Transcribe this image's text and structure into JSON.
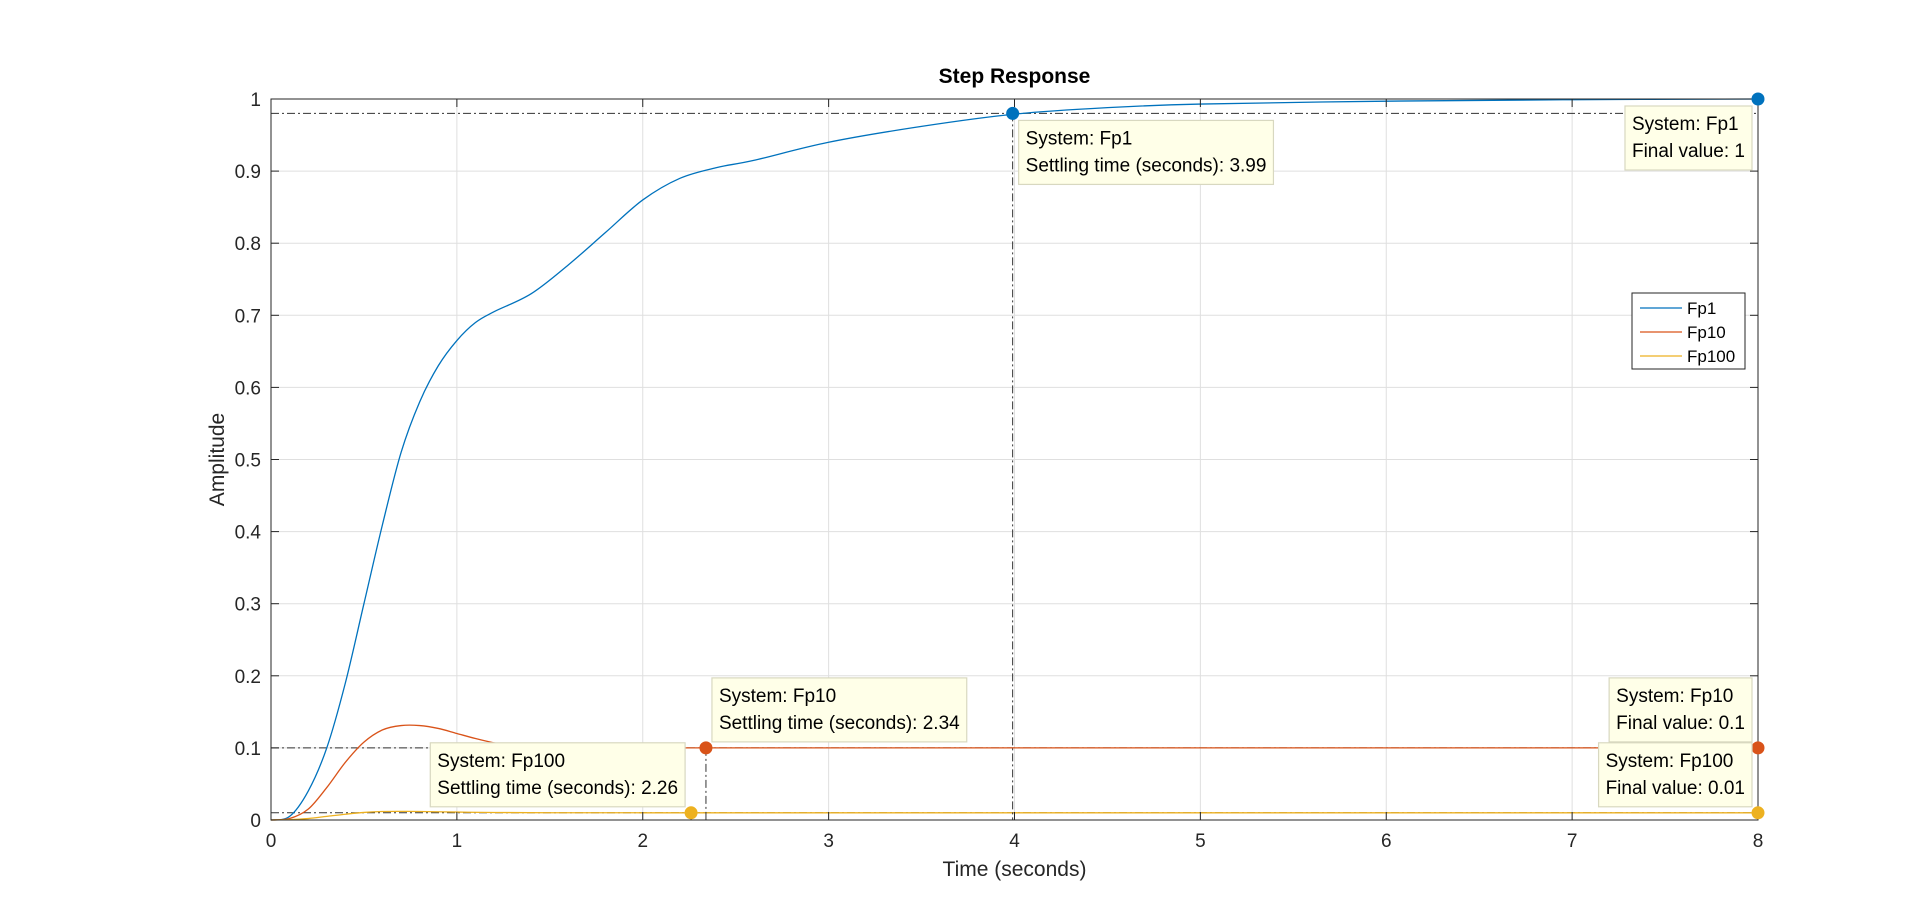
{
  "colors": {
    "fp1": "#0072bd",
    "fp10": "#d95319",
    "fp100": "#edb120",
    "marker_fp1": "#0072bd",
    "marker_fp10": "#d95319",
    "marker_fp100": "#edb120"
  },
  "chart_data": {
    "type": "line",
    "title": "Step Response",
    "xlabel": "Time (seconds)",
    "ylabel": "Amplitude",
    "xlim": [
      0,
      8
    ],
    "ylim": [
      0,
      1
    ],
    "x_ticks": [
      "0",
      "1",
      "2",
      "3",
      "4",
      "5",
      "6",
      "7",
      "8"
    ],
    "y_ticks": [
      "0",
      "0.1",
      "0.2",
      "0.3",
      "0.4",
      "0.5",
      "0.6",
      "0.7",
      "0.8",
      "0.9",
      "1"
    ],
    "grid": true,
    "legend_position": "right",
    "series": [
      {
        "name": "Fp1",
        "color_key": "fp1",
        "x": [
          0,
          0.1,
          0.2,
          0.3,
          0.4,
          0.5,
          0.6,
          0.7,
          0.8,
          0.9,
          1.0,
          1.1,
          1.2,
          1.4,
          1.6,
          1.8,
          2.0,
          2.2,
          2.4,
          2.6,
          3.0,
          3.5,
          4.0,
          4.5,
          5.0,
          6.0,
          7.0,
          8.0
        ],
        "y": [
          0,
          0.005,
          0.04,
          0.1,
          0.19,
          0.3,
          0.41,
          0.51,
          0.58,
          0.63,
          0.665,
          0.69,
          0.705,
          0.73,
          0.77,
          0.815,
          0.86,
          0.89,
          0.905,
          0.915,
          0.94,
          0.962,
          0.979,
          0.988,
          0.993,
          0.997,
          0.999,
          1.0
        ]
      },
      {
        "name": "Fp10",
        "color_key": "fp10",
        "x": [
          0,
          0.1,
          0.2,
          0.3,
          0.4,
          0.5,
          0.6,
          0.7,
          0.8,
          0.9,
          1.0,
          1.1,
          1.2,
          1.3,
          1.4,
          1.6,
          1.8,
          2.0,
          2.34,
          3.0,
          4.0,
          5.0,
          6.0,
          7.0,
          8.0
        ],
        "y": [
          0,
          0.002,
          0.015,
          0.045,
          0.08,
          0.108,
          0.125,
          0.131,
          0.131,
          0.127,
          0.12,
          0.113,
          0.107,
          0.103,
          0.1,
          0.098,
          0.099,
          0.1,
          0.1,
          0.1,
          0.1,
          0.1,
          0.1,
          0.1,
          0.1
        ]
      },
      {
        "name": "Fp100",
        "color_key": "fp100",
        "x": [
          0,
          0.1,
          0.2,
          0.3,
          0.4,
          0.5,
          0.6,
          0.7,
          0.8,
          1.0,
          1.2,
          1.5,
          2.0,
          2.26,
          3.0,
          4.0,
          5.0,
          6.0,
          7.0,
          8.0
        ],
        "y": [
          0,
          0.0005,
          0.002,
          0.005,
          0.008,
          0.0105,
          0.0118,
          0.012,
          0.0118,
          0.011,
          0.0104,
          0.0101,
          0.01,
          0.01,
          0.01,
          0.01,
          0.01,
          0.01,
          0.01,
          0.01
        ]
      }
    ],
    "data_tips": [
      {
        "id": "fp1-settling",
        "series": "fp1",
        "x": 3.99,
        "y": 0.98,
        "line1": "System: Fp1",
        "line2": "Settling time (seconds): 3.99",
        "box_side": "right-below"
      },
      {
        "id": "fp1-final",
        "series": "fp1",
        "x": 8,
        "y": 1,
        "line1": "System: Fp1",
        "line2": "Final value: 1",
        "box_side": "left-below"
      },
      {
        "id": "fp10-settling",
        "series": "fp10",
        "x": 2.34,
        "y": 0.1,
        "line1": "System: Fp10",
        "line2": "Settling time (seconds): 2.34",
        "box_side": "right-above"
      },
      {
        "id": "fp10-final",
        "series": "fp10",
        "x": 8,
        "y": 0.1,
        "line1": "System: Fp10",
        "line2": "Final value: 0.1",
        "box_side": "left-above"
      },
      {
        "id": "fp100-settling",
        "series": "fp100",
        "x": 2.26,
        "y": 0.01,
        "line1": "System: Fp100",
        "line2": "Settling time (seconds): 2.26",
        "box_side": "left-above"
      },
      {
        "id": "fp100-final",
        "series": "fp100",
        "x": 8,
        "y": 0.01,
        "line1": "System: Fp100",
        "line2": "Final value: 0.01",
        "box_side": "left-above"
      }
    ],
    "reference_lines": [
      {
        "y": 1.0
      },
      {
        "y": 0.98
      },
      {
        "y": 0.1
      },
      {
        "y": 0.01
      }
    ]
  }
}
